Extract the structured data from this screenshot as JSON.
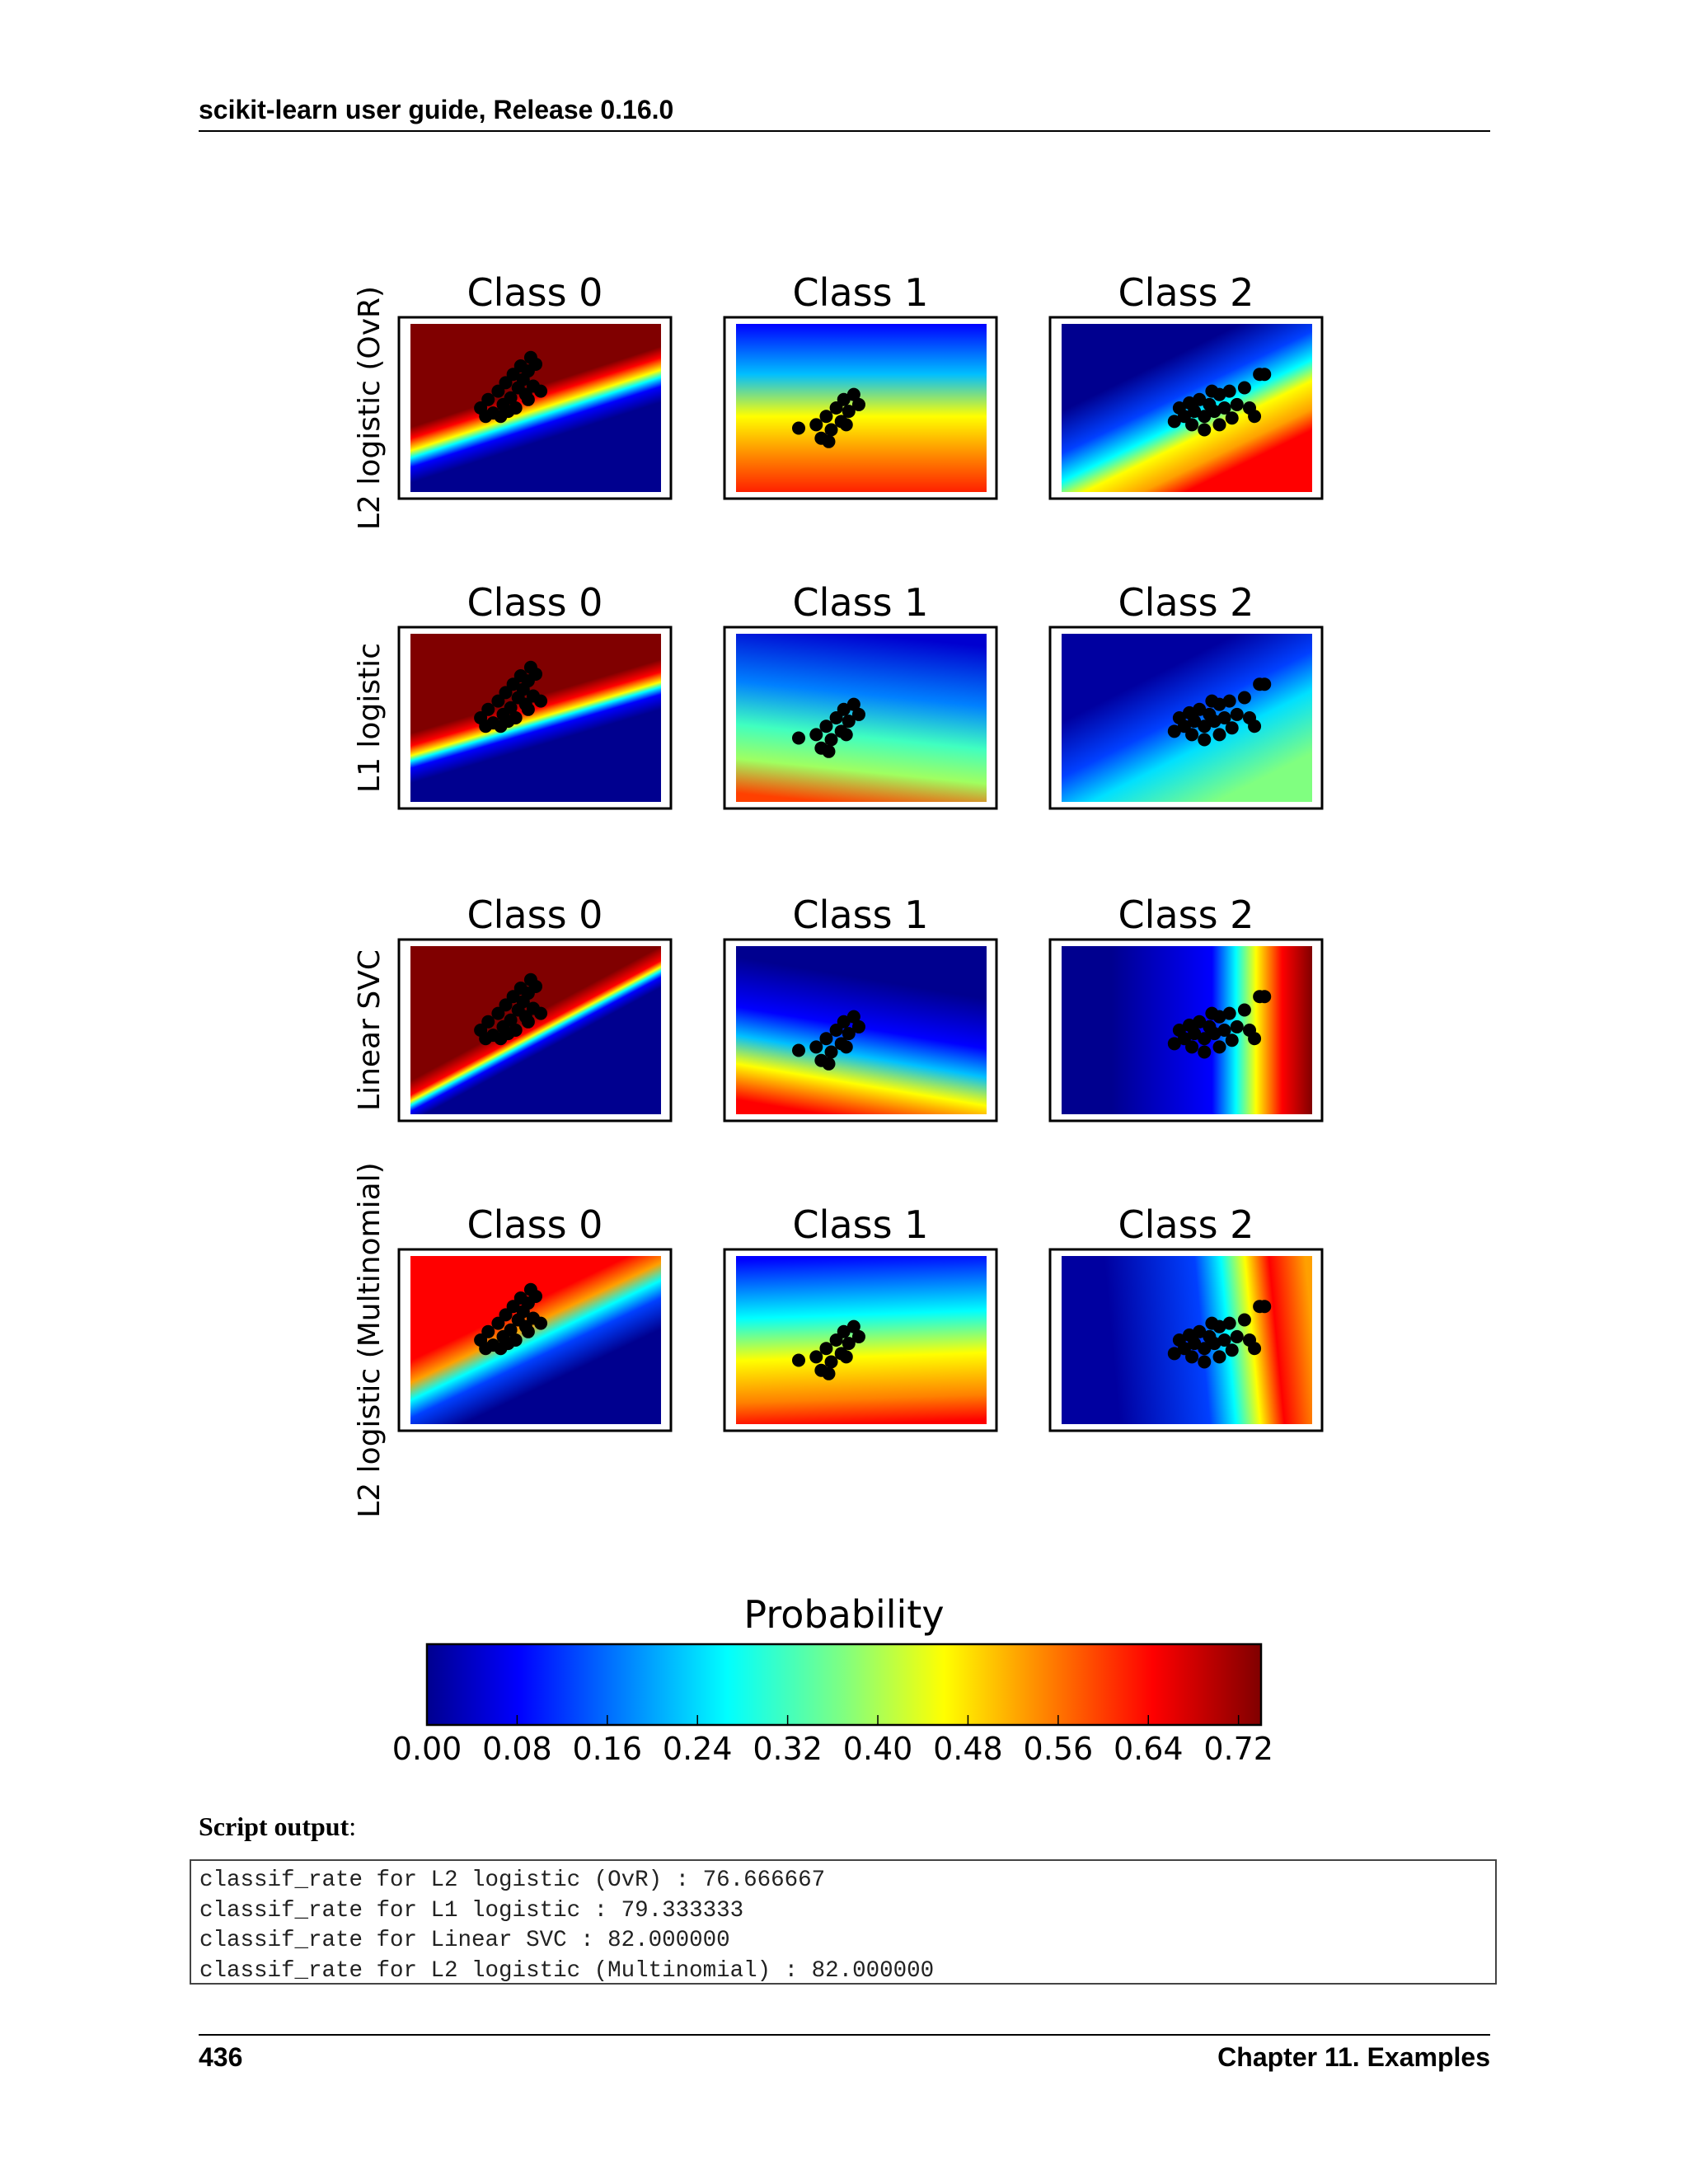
{
  "header": {
    "title": "scikit-learn user guide, Release 0.16.0"
  },
  "figure": {
    "rows": [
      {
        "label": "L2 logistic (OvR)",
        "panels": [
          "Class 0",
          "Class 1",
          "Class 2"
        ]
      },
      {
        "label": "L1 logistic",
        "panels": [
          "Class 0",
          "Class 1",
          "Class 2"
        ]
      },
      {
        "label": "Linear SVC",
        "panels": [
          "Class 0",
          "Class 1",
          "Class 2"
        ]
      },
      {
        "label": "L2 logistic (Multinomial)",
        "panels": [
          "Class 0",
          "Class 1",
          "Class 2"
        ]
      }
    ],
    "colorbar": {
      "title": "Probability",
      "ticks": [
        "0.00",
        "0.08",
        "0.16",
        "0.24",
        "0.32",
        "0.40",
        "0.48",
        "0.56",
        "0.64",
        "0.72"
      ],
      "colormap": "jet"
    }
  },
  "script_output": {
    "label": "Script output",
    "suffix": ":",
    "lines": [
      "classif_rate for L2 logistic (OvR) : 76.666667",
      "classif_rate for L1 logistic : 79.333333",
      "classif_rate for Linear SVC : 82.000000",
      "classif_rate for L2 logistic (Multinomial) : 82.000000"
    ]
  },
  "footer": {
    "page_number": "436",
    "chapter": "Chapter 11.  Examples"
  }
}
